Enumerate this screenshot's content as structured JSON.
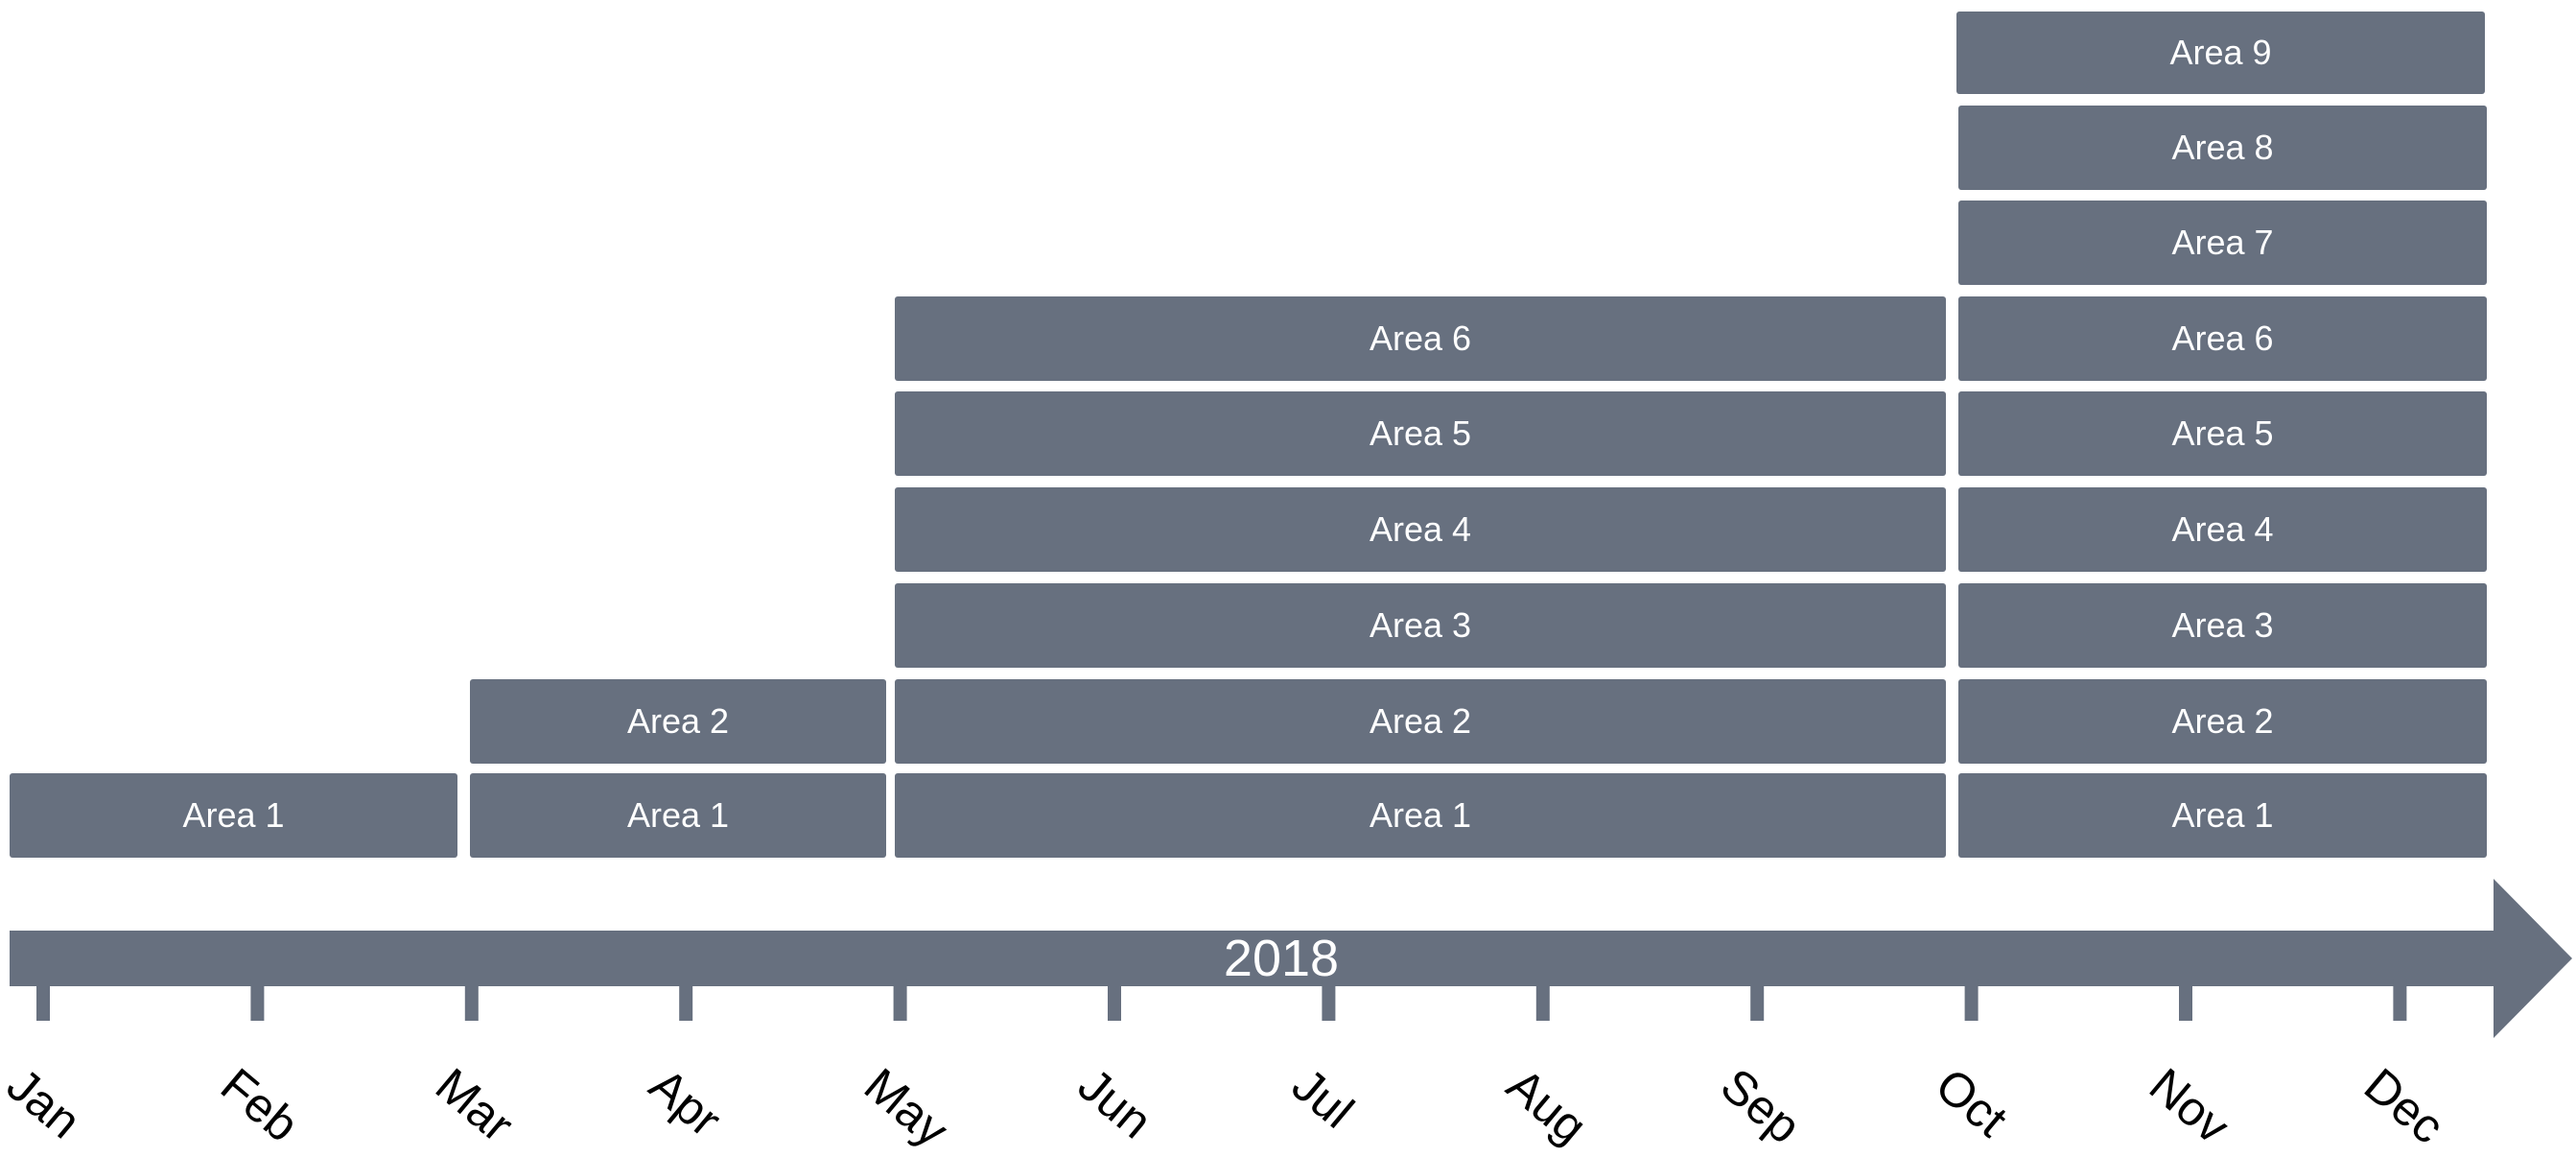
{
  "colors": {
    "bar": "#67707f",
    "label_on_bar": "#ffffff",
    "month_label": "#000000"
  },
  "timeline": {
    "year": "2018",
    "months": [
      "Jan",
      "Feb",
      "Mar",
      "Apr",
      "May",
      "Jun",
      "Jul",
      "Aug",
      "Sep",
      "Oct",
      "Nov",
      "Dec"
    ]
  },
  "groups": [
    {
      "span": [
        "Jan",
        "Feb"
      ],
      "areas": [
        "Area 1"
      ]
    },
    {
      "span": [
        "Mar",
        "Apr"
      ],
      "areas": [
        "Area 1",
        "Area 2"
      ]
    },
    {
      "span": [
        "May",
        "Sep"
      ],
      "areas": [
        "Area 1",
        "Area 2",
        "Area 3",
        "Area 4",
        "Area 5",
        "Area 6"
      ]
    },
    {
      "span": [
        "Oct",
        "Dec"
      ],
      "areas": [
        "Area 1",
        "Area 2",
        "Area 3",
        "Area 4",
        "Area 5",
        "Area 6",
        "Area 7",
        "Area 8",
        "Area 9"
      ]
    }
  ]
}
